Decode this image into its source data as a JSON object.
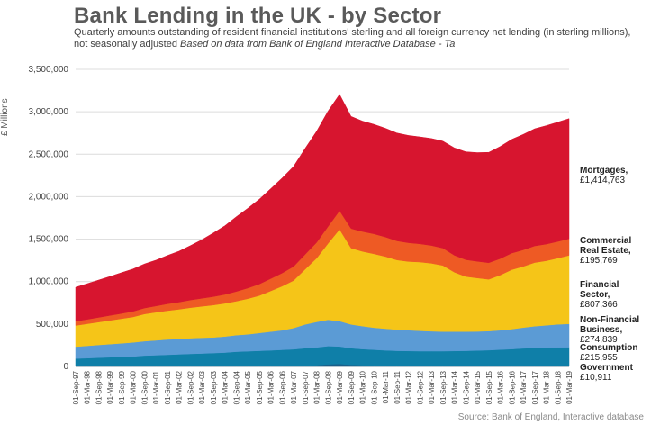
{
  "chart_data": {
    "type": "area",
    "stacked": true,
    "title": "Bank Lending in the UK - by Sector",
    "subtitle": "Quarterly amounts outstanding of resident financial institutions' sterling and all foreign currency net lending  (in sterling millions), not seasonally adjusted",
    "subtitle_source": "Based on data from Bank of England Interactive Database - Ta",
    "ylabel": "£ Millions",
    "source": "Source: Bank of England, Interactive database",
    "ylim": [
      0,
      3500000
    ],
    "y_ticks": [
      "0",
      "500,000",
      "1,000,000",
      "1,500,000",
      "2,000,000",
      "2,500,000",
      "3,000,000",
      "3,500,000"
    ],
    "y_tick_values": [
      0,
      500000,
      1000000,
      1500000,
      2000000,
      2500000,
      3000000,
      3500000
    ],
    "x_tick_labels": [
      "01-Sep-97",
      "01-Mar-98",
      "01-Sep-98",
      "01-Mar-99",
      "01-Sep-99",
      "01-Mar-00",
      "01-Sep-00",
      "01-Mar-01",
      "01-Sep-01",
      "01-Mar-02",
      "01-Sep-02",
      "01-Mar-03",
      "01-Sep-03",
      "01-Mar-04",
      "01-Sep-04",
      "01-Mar-05",
      "01-Sep-05",
      "01-Mar-06",
      "01-Sep-06",
      "01-Mar-07",
      "01-Sep-07",
      "01-Mar-08",
      "01-Sep-08",
      "01-Mar-09",
      "01-Sep-09",
      "01-Mar-10",
      "01-Sep-10",
      "01-Mar-11",
      "01-Sep-11",
      "01-Mar-12",
      "01-Sep-12",
      "01-Mar-13",
      "01-Sep-13",
      "01-Mar-14",
      "01-Sep-14",
      "01-Mar-15",
      "01-Sep-15",
      "01-Mar-16",
      "01-Sep-16",
      "01-Mar-17",
      "01-Sep-17",
      "01-Mar-18",
      "01-Sep-18",
      "01-Mar-19"
    ],
    "x": [
      "Sep-97",
      "Mar-98",
      "Sep-98",
      "Mar-99",
      "Sep-99",
      "Mar-00",
      "Sep-00",
      "Mar-01",
      "Sep-01",
      "Mar-02",
      "Sep-02",
      "Mar-03",
      "Sep-03",
      "Mar-04",
      "Sep-04",
      "Mar-05",
      "Sep-05",
      "Mar-06",
      "Sep-06",
      "Mar-07",
      "Sep-07",
      "Mar-08",
      "Sep-08",
      "Mar-09",
      "Sep-09",
      "Mar-10",
      "Sep-10",
      "Mar-11",
      "Sep-11",
      "Mar-12",
      "Sep-12",
      "Mar-13",
      "Sep-13",
      "Mar-14",
      "Sep-14",
      "Mar-15",
      "Sep-15",
      "Mar-16",
      "Sep-16",
      "Mar-17",
      "Sep-17",
      "Mar-18",
      "Sep-18",
      "Mar-19"
    ],
    "series": [
      {
        "name": "Government",
        "color": "#1a5f8a",
        "values": [
          3000,
          3000,
          3000,
          3000,
          3000,
          3000,
          3000,
          3000,
          3000,
          3000,
          3000,
          3000,
          3000,
          3000,
          4000,
          4000,
          5000,
          5000,
          6000,
          8000,
          10000,
          15000,
          25000,
          30000,
          20000,
          15000,
          12000,
          10000,
          10000,
          10000,
          10000,
          10000,
          10000,
          10000,
          10000,
          10000,
          10000,
          10000,
          10000,
          11000,
          11000,
          11000,
          11000,
          10911
        ]
      },
      {
        "name": "Consumption",
        "color": "#0f7fa8",
        "values": [
          90000,
          95000,
          100000,
          105000,
          110000,
          115000,
          125000,
          130000,
          135000,
          140000,
          145000,
          150000,
          155000,
          160000,
          170000,
          175000,
          180000,
          185000,
          190000,
          195000,
          205000,
          210000,
          215000,
          205000,
          195000,
          190000,
          185000,
          180000,
          175000,
          172000,
          170000,
          170000,
          170000,
          172000,
          175000,
          178000,
          182000,
          188000,
          195000,
          202000,
          208000,
          212000,
          215000,
          215955
        ]
      },
      {
        "name": "Non-Financial Business",
        "color": "#5b9bd5",
        "values": [
          140000,
          145000,
          150000,
          155000,
          160000,
          165000,
          170000,
          175000,
          180000,
          180000,
          185000,
          185000,
          185000,
          190000,
          195000,
          200000,
          210000,
          220000,
          230000,
          250000,
          280000,
          300000,
          310000,
          300000,
          280000,
          270000,
          260000,
          255000,
          250000,
          245000,
          240000,
          235000,
          230000,
          228000,
          225000,
          225000,
          225000,
          228000,
          235000,
          245000,
          255000,
          262000,
          270000,
          274839
        ]
      },
      {
        "name": "Financial Sector",
        "color": "#f5c518",
        "values": [
          250000,
          260000,
          270000,
          280000,
          290000,
          300000,
          320000,
          330000,
          340000,
          350000,
          360000,
          370000,
          380000,
          390000,
          400000,
          420000,
          440000,
          480000,
          520000,
          560000,
          650000,
          750000,
          900000,
          1080000,
          900000,
          880000,
          870000,
          850000,
          820000,
          810000,
          810000,
          800000,
          780000,
          700000,
          650000,
          630000,
          610000,
          650000,
          700000,
          720000,
          750000,
          760000,
          780000,
          807366
        ]
      },
      {
        "name": "Commercial Real Estate",
        "color": "#ee5a24",
        "values": [
          50000,
          52000,
          55000,
          58000,
          62000,
          66000,
          70000,
          75000,
          80000,
          85000,
          90000,
          95000,
          100000,
          105000,
          115000,
          125000,
          135000,
          145000,
          155000,
          165000,
          175000,
          185000,
          200000,
          220000,
          230000,
          235000,
          235000,
          230000,
          225000,
          220000,
          215000,
          210000,
          205000,
          200000,
          198000,
          196000,
          195000,
          195000,
          195000,
          195000,
          196000,
          196000,
          196000,
          195769
        ]
      },
      {
        "name": "Mortgages",
        "color": "#d7152f",
        "values": [
          400000,
          420000,
          440000,
          460000,
          480000,
          500000,
          520000,
          540000,
          570000,
          600000,
          640000,
          690000,
          750000,
          810000,
          880000,
          940000,
          1000000,
          1060000,
          1120000,
          1180000,
          1250000,
          1310000,
          1360000,
          1370000,
          1320000,
          1300000,
          1290000,
          1280000,
          1270000,
          1265000,
          1260000,
          1260000,
          1260000,
          1265000,
          1270000,
          1280000,
          1300000,
          1320000,
          1340000,
          1360000,
          1380000,
          1395000,
          1405000,
          1414763
        ]
      }
    ]
  },
  "legend": [
    {
      "key": "mortgages",
      "name": "Mortgages,",
      "value": "£1,414,763"
    },
    {
      "key": "cre",
      "name": "Commercial\nReal Estate,",
      "value": "£195,769"
    },
    {
      "key": "financial",
      "name": "Financial Sector,",
      "value": "£807,366"
    },
    {
      "key": "nfb",
      "name": "Non-Financial\nBusiness,",
      "value": "£274,839"
    },
    {
      "key": "consumption",
      "name": "Consumption",
      "value": "£215,955"
    },
    {
      "key": "government",
      "name": "Government",
      "value": "£10,911"
    }
  ]
}
